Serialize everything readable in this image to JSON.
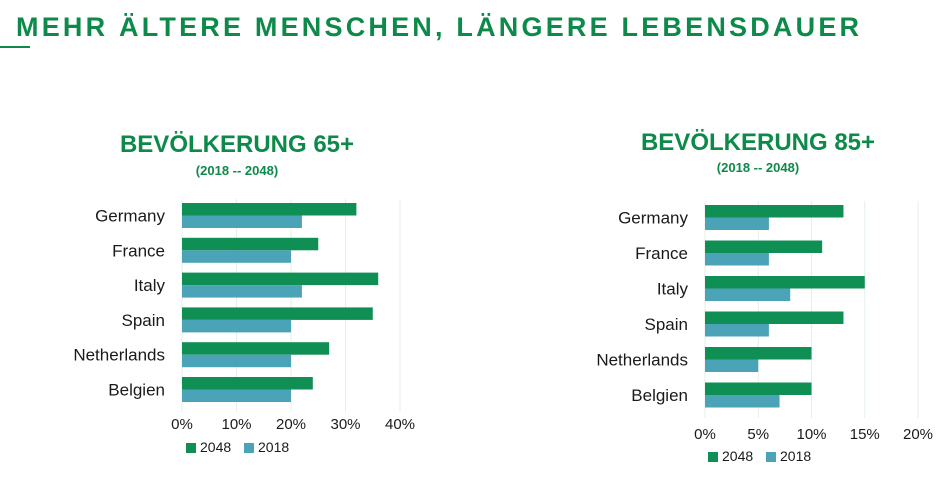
{
  "page": {
    "title": "MEHR ÄLTERE MENSCHEN, LÄNGERE LEBENSDAUER"
  },
  "colors": {
    "accent": "#0d8a4a",
    "series_2048": "#0f8f54",
    "series_2018": "#4ba3b8"
  },
  "chart_data": [
    {
      "type": "bar",
      "orientation": "horizontal",
      "title": "BEVÖLKERUNG 65+",
      "subtitle": "(2018 -- 2048)",
      "categories": [
        "Germany",
        "France",
        "Italy",
        "Spain",
        "Netherlands",
        "Belgien"
      ],
      "series": [
        {
          "name": "2048",
          "values": [
            0.32,
            0.25,
            0.36,
            0.35,
            0.27,
            0.24
          ]
        },
        {
          "name": "2018",
          "values": [
            0.22,
            0.2,
            0.22,
            0.2,
            0.2,
            0.2
          ]
        }
      ],
      "xlim": [
        0,
        0.4
      ],
      "xticks": [
        "0%",
        "10%",
        "20%",
        "30%",
        "40%"
      ],
      "grid": true,
      "legend": "bottom"
    },
    {
      "type": "bar",
      "orientation": "horizontal",
      "title": "BEVÖLKERUNG 85+",
      "subtitle": "(2018 -- 2048)",
      "categories": [
        "Germany",
        "France",
        "Italy",
        "Spain",
        "Netherlands",
        "Belgien"
      ],
      "series": [
        {
          "name": "2048",
          "values": [
            0.13,
            0.11,
            0.15,
            0.13,
            0.1,
            0.1
          ]
        },
        {
          "name": "2018",
          "values": [
            0.06,
            0.06,
            0.08,
            0.06,
            0.05,
            0.07
          ]
        }
      ],
      "xlim": [
        0,
        0.2
      ],
      "xticks": [
        "0%",
        "5%",
        "10%",
        "15%",
        "20%"
      ],
      "grid": true,
      "legend": "bottom"
    }
  ]
}
